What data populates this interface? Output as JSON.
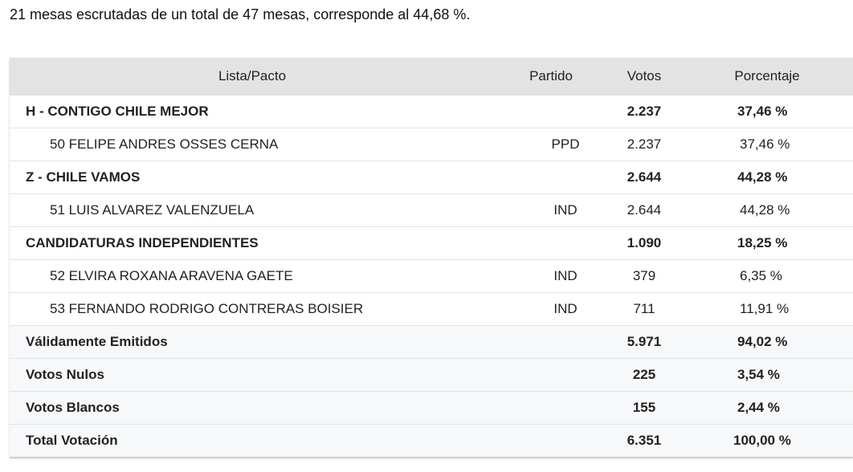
{
  "summary_text": "21 mesas escrutadas de un total de 47 mesas, corresponde al 44,68 %.",
  "table": {
    "headers": {
      "lista": "Lista/Pacto",
      "partido": "Partido",
      "votos": "Votos",
      "porcentaje": "Porcentaje"
    },
    "rows": [
      {
        "type": "pacto",
        "lista": "H - CONTIGO CHILE MEJOR",
        "partido": "",
        "votos": "2.237",
        "porcentaje": "37,46 %"
      },
      {
        "type": "candidato",
        "lista": "50 FELIPE ANDRES OSSES CERNA",
        "partido": "PPD",
        "votos": "2.237",
        "porcentaje": "37,46 %"
      },
      {
        "type": "pacto",
        "lista": "Z - CHILE VAMOS",
        "partido": "",
        "votos": "2.644",
        "porcentaje": "44,28 %"
      },
      {
        "type": "candidato",
        "lista": "51 LUIS ALVAREZ VALENZUELA",
        "partido": "IND",
        "votos": "2.644",
        "porcentaje": "44,28 %"
      },
      {
        "type": "pacto",
        "lista": "CANDIDATURAS INDEPENDIENTES",
        "partido": "",
        "votos": "1.090",
        "porcentaje": "18,25 %"
      },
      {
        "type": "candidato",
        "lista": "52 ELVIRA ROXANA ARAVENA GAETE",
        "partido": "IND",
        "votos": "379",
        "porcentaje": "6,35 %"
      },
      {
        "type": "candidato",
        "lista": "53 FERNANDO RODRIGO CONTRERAS BOISIER",
        "partido": "IND",
        "votos": "711",
        "porcentaje": "11,91 %"
      }
    ],
    "totals": [
      {
        "lista": "Válidamente Emitidos",
        "votos": "5.971",
        "porcentaje": "94,02 %"
      },
      {
        "lista": "Votos Nulos",
        "votos": "225",
        "porcentaje": "3,54 %"
      },
      {
        "lista": "Votos Blancos",
        "votos": "155",
        "porcentaje": "2,44 %"
      },
      {
        "lista": "Total Votación",
        "votos": "6.351",
        "porcentaje": "100,00 %"
      }
    ]
  }
}
